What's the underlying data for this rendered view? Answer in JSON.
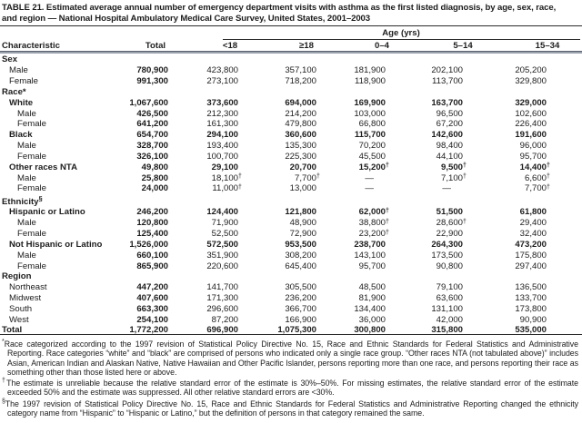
{
  "title": "TABLE 21. Estimated average annual number of emergency department visits with asthma as the first listed diagnosis, by age, sex, race, and region — National Hospital Ambulatory Medical Care Survey, United States, 2001–2003",
  "table": {
    "age_group_label": "Age (yrs)",
    "col_headers": [
      "Characteristic",
      "Total",
      "<18",
      "≥18",
      "0–4",
      "5–14",
      "15–34"
    ],
    "rows": [
      {
        "label": "Sex",
        "indent": 0,
        "section": true
      },
      {
        "label": "Male",
        "indent": 1,
        "values": [
          "780,900",
          "423,800",
          "357,100",
          "181,900",
          "202,100",
          "205,200"
        ]
      },
      {
        "label": "Female",
        "indent": 1,
        "values": [
          "991,300",
          "273,100",
          "718,200",
          "118,900",
          "113,700",
          "329,800"
        ]
      },
      {
        "label": "Race*",
        "indent": 0,
        "section": true
      },
      {
        "label": "White",
        "indent": 1,
        "bold": true,
        "values": [
          "1,067,600",
          "373,600",
          "694,000",
          "169,900",
          "163,700",
          "329,000"
        ]
      },
      {
        "label": "Male",
        "indent": 2,
        "values": [
          "426,500",
          "212,300",
          "214,200",
          "103,000",
          "96,500",
          "102,600"
        ]
      },
      {
        "label": "Female",
        "indent": 2,
        "values": [
          "641,200",
          "161,300",
          "479,800",
          "66,800",
          "67,200",
          "226,400"
        ]
      },
      {
        "label": "Black",
        "indent": 1,
        "bold": true,
        "values": [
          "654,700",
          "294,100",
          "360,600",
          "115,700",
          "142,600",
          "191,600"
        ]
      },
      {
        "label": "Male",
        "indent": 2,
        "values": [
          "328,700",
          "193,400",
          "135,300",
          "70,200",
          "98,400",
          "96,000"
        ]
      },
      {
        "label": "Female",
        "indent": 2,
        "values": [
          "326,100",
          "100,700",
          "225,300",
          "45,500",
          "44,100",
          "95,700"
        ]
      },
      {
        "label": "Other races NTA",
        "indent": 1,
        "bold": true,
        "values": [
          "49,800",
          "29,100",
          "20,700",
          "15,200†",
          "9,500†",
          "14,400†"
        ]
      },
      {
        "label": "Male",
        "indent": 2,
        "values": [
          "25,800",
          "18,100†",
          "7,700†",
          "—",
          "7,100†",
          "6,600†"
        ]
      },
      {
        "label": "Female",
        "indent": 2,
        "values": [
          "24,000",
          "11,000†",
          "13,000",
          "—",
          "—",
          "7,700†"
        ]
      },
      {
        "label": "Ethnicity§",
        "indent": 0,
        "section": true
      },
      {
        "label": "Hispanic or Latino",
        "indent": 1,
        "bold": true,
        "values": [
          "246,200",
          "124,400",
          "121,800",
          "62,000†",
          "51,500",
          "61,800"
        ]
      },
      {
        "label": "Male",
        "indent": 2,
        "values": [
          "120,800",
          "71,900",
          "48,900",
          "38,800†",
          "28,600†",
          "29,400"
        ]
      },
      {
        "label": "Female",
        "indent": 2,
        "values": [
          "125,400",
          "52,500",
          "72,900",
          "23,200†",
          "22,900",
          "32,400"
        ]
      },
      {
        "label": "Not Hispanic or Latino",
        "indent": 1,
        "bold": true,
        "values": [
          "1,526,000",
          "572,500",
          "953,500",
          "238,700",
          "264,300",
          "473,200"
        ]
      },
      {
        "label": "Male",
        "indent": 2,
        "values": [
          "660,100",
          "351,900",
          "308,200",
          "143,100",
          "173,500",
          "175,800"
        ]
      },
      {
        "label": "Female",
        "indent": 2,
        "values": [
          "865,900",
          "220,600",
          "645,400",
          "95,700",
          "90,800",
          "297,400"
        ]
      },
      {
        "label": "Region",
        "indent": 0,
        "section": true
      },
      {
        "label": "Northeast",
        "indent": 1,
        "values": [
          "447,200",
          "141,700",
          "305,500",
          "48,500",
          "79,100",
          "136,500"
        ]
      },
      {
        "label": "Midwest",
        "indent": 1,
        "values": [
          "407,600",
          "171,300",
          "236,200",
          "81,900",
          "63,600",
          "133,700"
        ]
      },
      {
        "label": "South",
        "indent": 1,
        "values": [
          "663,300",
          "296,600",
          "366,700",
          "134,400",
          "131,100",
          "173,800"
        ]
      },
      {
        "label": "West",
        "indent": 1,
        "values": [
          "254,100",
          "87,200",
          "166,900",
          "36,000",
          "42,000",
          "90,900"
        ]
      },
      {
        "label": "Total",
        "indent": 0,
        "bold": true,
        "values": [
          "1,772,200",
          "696,900",
          "1,075,300",
          "300,800",
          "315,800",
          "535,000"
        ]
      }
    ]
  },
  "footnotes": [
    {
      "marker": "*",
      "text": "Race categorized according to the 1997 revision of Statistical Policy Directive No. 15, Race and Ethnic Standards for Federal Statistics and Administrative Reporting. Race categories “white” and “black” are comprised of persons who indicated only a single race group. “Other races NTA (not tabulated above)” includes Asian, American Indian and Alaskan Native, Native Hawaiian and Other Pacific Islander, persons reporting more than one race, and persons reporting their race as something other than those listed here or above."
    },
    {
      "marker": "†",
      "text": "The estimate is unreliable because the relative standard error of the estimate is 30%–50%. For missing estimates, the relative standard error of the estimate exceeded 50% and the estimate was suppressed. All other relative standard errors are <30%."
    },
    {
      "marker": "§",
      "text": "The 1997 revision of Statistical Policy Directive No. 15, Race and Ethnic Standards for Federal Statistics and Administrative Reporting changed the ethnicity category name from “Hispanic” to “Hispanic or Latino,” but the definition of persons in that category remained the same."
    }
  ]
}
